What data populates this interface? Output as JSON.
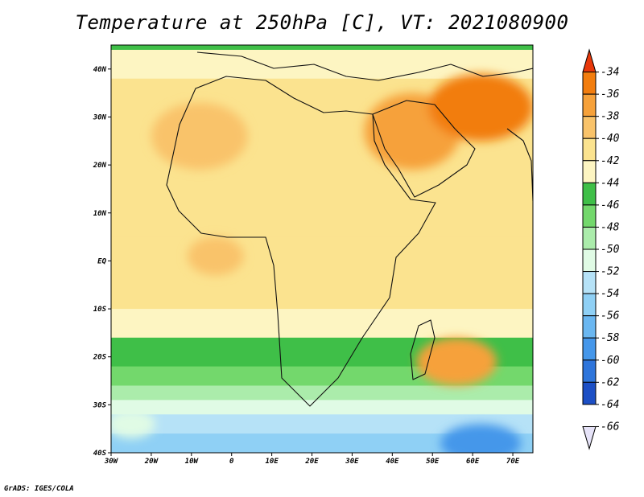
{
  "title": "Temperature at 250hPa [C], VT: 2021080900",
  "footer": "GrADS: IGES/COLA",
  "map": {
    "lon_range": [
      -30,
      75
    ],
    "lat_range": [
      -40,
      45
    ],
    "lon_ticks": [
      {
        "value": -30,
        "label": "30W"
      },
      {
        "value": -20,
        "label": "20W"
      },
      {
        "value": -10,
        "label": "10W"
      },
      {
        "value": 0,
        "label": "0"
      },
      {
        "value": 10,
        "label": "10E"
      },
      {
        "value": 20,
        "label": "20E"
      },
      {
        "value": 30,
        "label": "30E"
      },
      {
        "value": 40,
        "label": "40E"
      },
      {
        "value": 50,
        "label": "50E"
      },
      {
        "value": 60,
        "label": "60E"
      },
      {
        "value": 70,
        "label": "70E"
      }
    ],
    "lat_ticks": [
      {
        "value": 40,
        "label": "40N"
      },
      {
        "value": 30,
        "label": "30N"
      },
      {
        "value": 20,
        "label": "20N"
      },
      {
        "value": 10,
        "label": "10N"
      },
      {
        "value": 0,
        "label": "EQ"
      },
      {
        "value": -10,
        "label": "10S"
      },
      {
        "value": -20,
        "label": "20S"
      },
      {
        "value": -30,
        "label": "30S"
      },
      {
        "value": -40,
        "label": "40S"
      }
    ],
    "field_bands": [
      {
        "lat": [
          44,
          45
        ],
        "level": "-46"
      },
      {
        "lat": [
          38,
          44
        ],
        "level": "-44"
      },
      {
        "lat": [
          20,
          38
        ],
        "level": "-42"
      },
      {
        "lat": [
          5,
          20
        ],
        "level": "-42"
      },
      {
        "lat": [
          -10,
          5
        ],
        "level": "-42"
      },
      {
        "lat": [
          -16,
          -10
        ],
        "level": "-44"
      },
      {
        "lat": [
          -22,
          -16
        ],
        "level": "-46"
      },
      {
        "lat": [
          -26,
          -22
        ],
        "level": "-48"
      },
      {
        "lat": [
          -29,
          -26
        ],
        "level": "-50"
      },
      {
        "lat": [
          -32,
          -29
        ],
        "level": "-52"
      },
      {
        "lat": [
          -36,
          -32
        ],
        "level": "-54"
      },
      {
        "lat": [
          -40,
          -36
        ],
        "level": "-56"
      }
    ],
    "warm_regions": [
      {
        "name": "sahara",
        "lon": -8,
        "lat": 26,
        "rx": 12,
        "ry": 7,
        "level": "-40"
      },
      {
        "name": "arabia",
        "lon": 45,
        "lat": 27,
        "rx": 12,
        "ry": 8,
        "level": "-38"
      },
      {
        "name": "iran-afghanistan",
        "lon": 62,
        "lat": 32,
        "rx": 13,
        "ry": 7,
        "level": "-36"
      },
      {
        "name": "indian-ocean-south",
        "lon": 56,
        "lat": -21,
        "rx": 10,
        "ry": 5,
        "level": "-38"
      },
      {
        "name": "gulf-guinea",
        "lon": -4,
        "lat": 1,
        "rx": 7,
        "ry": 4,
        "level": "-40"
      }
    ],
    "cold_regions": [
      {
        "name": "southern-ocean-east",
        "lon": 62,
        "lat": -38,
        "rx": 10,
        "ry": 4,
        "level": "-60"
      },
      {
        "name": "south-atlantic",
        "lon": -25,
        "lat": -34,
        "rx": 6,
        "ry": 3,
        "level": "-52"
      }
    ]
  },
  "colorbar": {
    "labels": [
      "-34",
      "-36",
      "-38",
      "-40",
      "-42",
      "-44",
      "-46",
      "-48",
      "-50",
      "-52",
      "-54",
      "-56",
      "-58",
      "-60",
      "-62",
      "-64",
      "-66"
    ],
    "colors": [
      "#e8380a",
      "#f27d0e",
      "#f6a13a",
      "#f9c36a",
      "#fbe38f",
      "#fdf5c2",
      "#3fbf48",
      "#73d86c",
      "#abecab",
      "#e0fbe5",
      "#b6e2f7",
      "#8fd0f5",
      "#6ab7f1",
      "#4597ea",
      "#2e75db",
      "#1c4fc5",
      "#0c1f82"
    ]
  }
}
